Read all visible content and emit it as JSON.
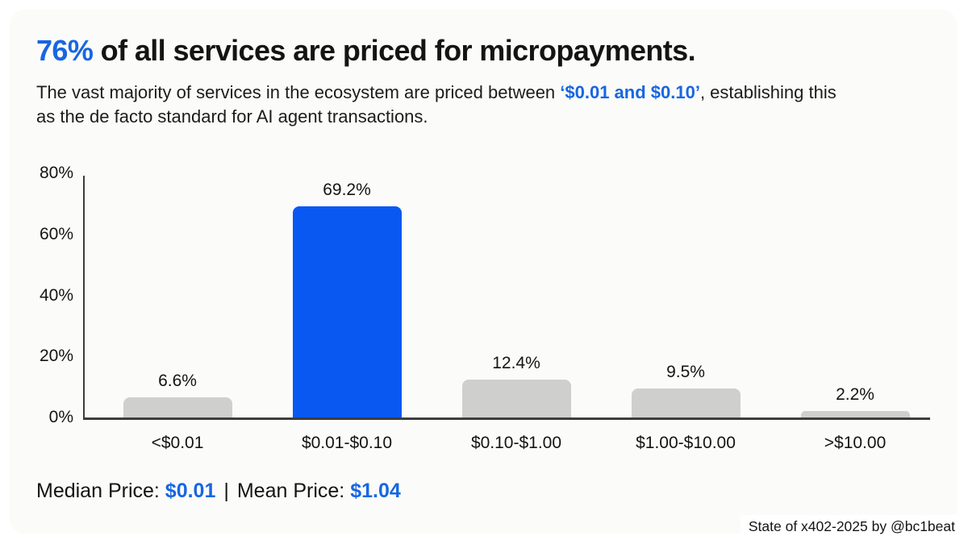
{
  "header": {
    "title_highlight": "76%",
    "title_rest": " of all services are priced for micropayments.",
    "subtitle_before": "The vast majority of services in the ecosystem are priced between ",
    "subtitle_highlight": "‘$0.01 and $0.10’",
    "subtitle_after": ", establishing this as the de facto standard for AI agent transactions."
  },
  "chart_data": {
    "type": "bar",
    "categories": [
      "<$0.01",
      "$0.01-$0.10",
      "$0.10-$1.00",
      "$1.00-$10.00",
      ">$10.00"
    ],
    "values": [
      6.6,
      69.2,
      12.4,
      9.5,
      2.2
    ],
    "value_labels": [
      "6.6%",
      "69.2%",
      "12.4%",
      "9.5%",
      "2.2%"
    ],
    "highlight_index": 1,
    "y_ticks": [
      "0%",
      "20%",
      "40%",
      "60%",
      "80%"
    ],
    "y_tick_values": [
      0,
      20,
      40,
      60,
      80
    ],
    "ylim": [
      0,
      80
    ],
    "grid": false,
    "legend": "none",
    "title": "",
    "xlabel": "",
    "ylabel": "",
    "bar_color_default": "#cfcfcd",
    "bar_color_highlight": "#0a58f2"
  },
  "stats": {
    "median_label": "Median Price: ",
    "median_value": "$0.01",
    "separator": "|",
    "mean_label": "Mean Price: ",
    "mean_value": "$1.04"
  },
  "footer": {
    "credit": "State of x402-2025 by @bc1beat"
  },
  "colors": {
    "accent_text": "#1766e2",
    "bar_highlight": "#0a58f2",
    "bar_default": "#cfcfcd",
    "axis": "#3d3d3d"
  }
}
